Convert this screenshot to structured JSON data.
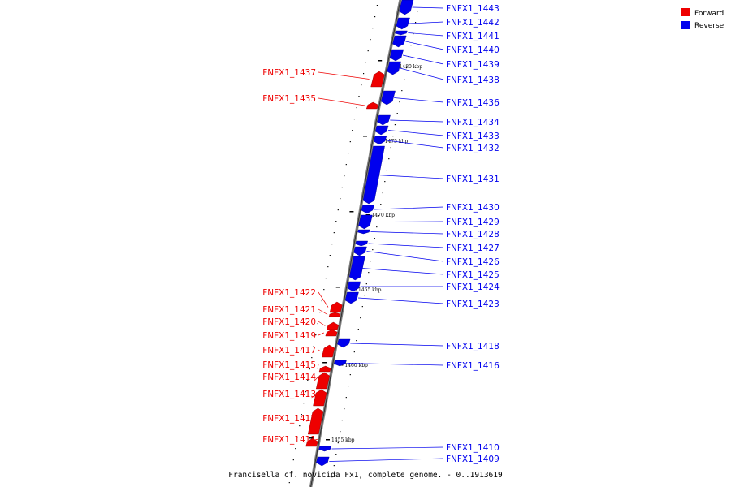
{
  "colors": {
    "forward": "#ee0000",
    "reverse": "#0000ee",
    "backbone": "#808080"
  },
  "legend": [
    {
      "key": "forward",
      "label": "Forward"
    },
    {
      "key": "reverse",
      "label": "Reverse"
    }
  ],
  "caption": "Francisella cf. novicida Fx1, complete genome. - 0..1913619",
  "ticks": [
    "1480 kbp",
    "1475 kbp",
    "1470 kbp",
    "1465 kbp",
    "1460 kbp",
    "1455 kbp"
  ],
  "genes": {
    "forward": [
      "FNFX1_1437",
      "FNFX1_1435",
      "FNFX1_1422",
      "FNFX1_1421",
      "FNFX1_1420",
      "FNFX1_1419",
      "FNFX1_1417",
      "FNFX1_1415",
      "FNFX1_1414",
      "FNFX1_1413",
      "FNFX1_1412",
      "FNFX1_1411"
    ],
    "reverse": [
      "FNFX1_1443",
      "FNFX1_1442",
      "FNFX1_1441",
      "FNFX1_1440",
      "FNFX1_1439",
      "FNFX1_1438",
      "FNFX1_1436",
      "FNFX1_1434",
      "FNFX1_1433",
      "FNFX1_1432",
      "FNFX1_1431",
      "FNFX1_1430",
      "FNFX1_1429",
      "FNFX1_1428",
      "FNFX1_1427",
      "FNFX1_1426",
      "FNFX1_1425",
      "FNFX1_1424",
      "FNFX1_1423",
      "FNFX1_1418",
      "FNFX1_1416",
      "FNFX1_1410",
      "FNFX1_1409"
    ]
  }
}
